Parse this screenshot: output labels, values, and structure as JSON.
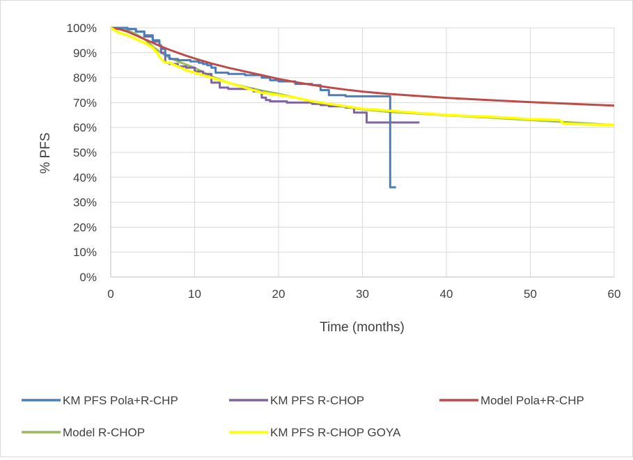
{
  "chart_data": {
    "type": "line",
    "title": "",
    "xlabel": "Time (months)",
    "ylabel": "% PFS",
    "xlim": [
      0,
      60
    ],
    "ylim": [
      0,
      100
    ],
    "x_ticks": [
      "0",
      "10",
      "20",
      "30",
      "40",
      "50",
      "60"
    ],
    "y_ticks": [
      "0%",
      "10%",
      "20%",
      "30%",
      "40%",
      "50%",
      "60%",
      "70%",
      "80%",
      "90%",
      "100%"
    ],
    "grid": true,
    "legend_position": "bottom",
    "series": [
      {
        "name": "KM PFS Pola+R-CHP",
        "color": "#4a7ebb",
        "step": true,
        "points": [
          [
            0,
            100
          ],
          [
            1.5,
            100
          ],
          [
            2,
            99.5
          ],
          [
            3,
            98.5
          ],
          [
            4,
            97
          ],
          [
            5,
            95
          ],
          [
            5.8,
            93
          ],
          [
            6,
            91.5
          ],
          [
            6.5,
            89
          ],
          [
            7,
            87.5
          ],
          [
            8,
            87
          ],
          [
            9.5,
            86.5
          ],
          [
            10.5,
            86
          ],
          [
            11,
            85.5
          ],
          [
            11.5,
            85
          ],
          [
            12,
            84
          ],
          [
            12.5,
            82
          ],
          [
            14,
            81.5
          ],
          [
            16,
            81
          ],
          [
            18,
            80
          ],
          [
            19,
            79
          ],
          [
            20,
            78.5
          ],
          [
            22,
            77.5
          ],
          [
            24,
            77
          ],
          [
            25,
            75
          ],
          [
            26,
            73
          ],
          [
            28,
            72.5
          ],
          [
            33.3,
            72.5
          ],
          [
            33.3,
            36
          ],
          [
            34,
            36
          ]
        ]
      },
      {
        "name": "KM PFS R-CHOP",
        "color": "#8064a2",
        "step": true,
        "points": [
          [
            0,
            100
          ],
          [
            1.5,
            100
          ],
          [
            2,
            99.5
          ],
          [
            3,
            98.5
          ],
          [
            4,
            96.5
          ],
          [
            5,
            94.5
          ],
          [
            5.8,
            93
          ],
          [
            6,
            90
          ],
          [
            6.5,
            86
          ],
          [
            7,
            85.5
          ],
          [
            8,
            84.5
          ],
          [
            9,
            84
          ],
          [
            10,
            82.5
          ],
          [
            11,
            81.5
          ],
          [
            12,
            78
          ],
          [
            13,
            76
          ],
          [
            14,
            75.5
          ],
          [
            17,
            74.5
          ],
          [
            18,
            72
          ],
          [
            18.5,
            71
          ],
          [
            19,
            70.5
          ],
          [
            21,
            70
          ],
          [
            24,
            69.5
          ],
          [
            25,
            69
          ],
          [
            26,
            68.5
          ],
          [
            28,
            68
          ],
          [
            29,
            66
          ],
          [
            30.5,
            66
          ],
          [
            30.5,
            62
          ],
          [
            36.8,
            62
          ]
        ]
      },
      {
        "name": "Model Pola+R-CHP",
        "color": "#be4b48",
        "step": false,
        "points": [
          [
            0,
            100
          ],
          [
            1,
            99.5
          ],
          [
            2,
            98.5
          ],
          [
            3,
            97
          ],
          [
            4,
            95.5
          ],
          [
            5,
            94
          ],
          [
            6,
            92.5
          ],
          [
            7,
            91.2
          ],
          [
            8,
            90
          ],
          [
            9,
            88.8
          ],
          [
            10,
            87.7
          ],
          [
            12,
            85.7
          ],
          [
            14,
            84
          ],
          [
            16,
            82.5
          ],
          [
            18,
            81
          ],
          [
            20,
            79.5
          ],
          [
            22,
            78.2
          ],
          [
            24,
            77.1
          ],
          [
            26,
            76.1
          ],
          [
            28,
            75.2
          ],
          [
            30,
            74.4
          ],
          [
            33,
            73.5
          ],
          [
            36,
            72.8
          ],
          [
            40,
            71.9
          ],
          [
            45,
            71
          ],
          [
            50,
            70.2
          ],
          [
            55,
            69.5
          ],
          [
            60,
            68.8
          ]
        ]
      },
      {
        "name": "Model R-CHOP",
        "color": "#9bbb59",
        "step": false,
        "points": [
          [
            0,
            100
          ],
          [
            1,
            99.8
          ],
          [
            2,
            99
          ],
          [
            3,
            97.5
          ],
          [
            4,
            95.5
          ],
          [
            5,
            92.5
          ],
          [
            6,
            90
          ],
          [
            7,
            88
          ],
          [
            8,
            86.5
          ],
          [
            10,
            84
          ],
          [
            12,
            80.5
          ],
          [
            14,
            78
          ],
          [
            16,
            76.3
          ],
          [
            18,
            74.8
          ],
          [
            20,
            73.5
          ],
          [
            22,
            72
          ],
          [
            24,
            70.5
          ],
          [
            26,
            69.3
          ],
          [
            28,
            68.2
          ],
          [
            30,
            67.3
          ],
          [
            33,
            66.3
          ],
          [
            36,
            65.7
          ],
          [
            40,
            64.9
          ],
          [
            45,
            64
          ],
          [
            50,
            63
          ],
          [
            55,
            62
          ],
          [
            60,
            61
          ]
        ]
      },
      {
        "name": "KM PFS R-CHOP GOYA",
        "color": "#ffff00",
        "step": false,
        "points": [
          [
            0,
            100
          ],
          [
            0.5,
            99
          ],
          [
            1,
            98
          ],
          [
            2,
            97
          ],
          [
            3,
            95.5
          ],
          [
            4,
            94
          ],
          [
            5,
            92
          ],
          [
            5.5,
            90
          ],
          [
            6,
            87.5
          ],
          [
            6.5,
            86
          ],
          [
            7,
            86
          ],
          [
            8,
            84.5
          ],
          [
            9,
            83
          ],
          [
            10,
            82
          ],
          [
            11,
            81
          ],
          [
            12,
            80
          ],
          [
            13,
            79
          ],
          [
            14,
            78
          ],
          [
            15,
            77
          ],
          [
            16,
            76
          ],
          [
            17,
            75
          ],
          [
            18,
            74
          ],
          [
            20,
            73
          ],
          [
            22,
            72
          ],
          [
            24,
            70.5
          ],
          [
            26,
            69.5
          ],
          [
            28,
            68.5
          ],
          [
            30,
            67.5
          ],
          [
            32,
            67
          ],
          [
            34,
            66.5
          ],
          [
            36,
            66
          ],
          [
            38,
            65.5
          ],
          [
            40,
            65
          ],
          [
            42,
            64.7
          ],
          [
            45,
            64.3
          ],
          [
            48,
            63.8
          ],
          [
            50,
            63.3
          ],
          [
            53.5,
            63
          ],
          [
            54,
            61.5
          ],
          [
            56,
            61.3
          ],
          [
            60,
            61
          ]
        ]
      }
    ]
  }
}
